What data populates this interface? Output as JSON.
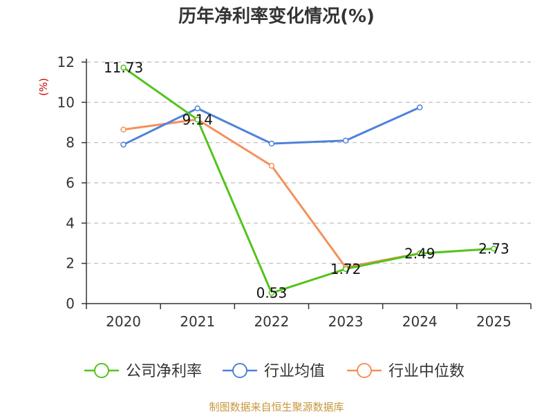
{
  "chart_data": {
    "type": "line",
    "title": "历年净利率变化情况(%)",
    "ylabel": "(%)",
    "xlabel": "",
    "categories": [
      "2020",
      "2021",
      "2022",
      "2023",
      "2024",
      "2025"
    ],
    "ylim": [
      0,
      12
    ],
    "yticks": [
      0,
      2,
      4,
      6,
      8,
      10,
      12
    ],
    "grid": "horizontal dashed",
    "legend_position": "bottom",
    "series": [
      {
        "name": "公司净利率",
        "color": "#52c41a",
        "values": [
          11.73,
          9.14,
          0.53,
          1.72,
          2.49,
          2.73
        ],
        "labels": [
          "11.73",
          "9.14",
          "0.53",
          "1.72",
          "2.49",
          "2.73"
        ]
      },
      {
        "name": "行业均值",
        "color": "#4e82d9",
        "values": [
          7.9,
          9.7,
          7.95,
          8.1,
          9.75,
          null
        ]
      },
      {
        "name": "行业中位数",
        "color": "#f5905a",
        "values": [
          8.65,
          9.15,
          6.85,
          1.8,
          2.5,
          null
        ]
      }
    ]
  },
  "source": "制图数据来自恒生聚源数据库",
  "colors": {
    "ylabel": "#cc0000",
    "source": "#c8963c",
    "grid": "#bbbbbb",
    "axis": "#333333"
  }
}
